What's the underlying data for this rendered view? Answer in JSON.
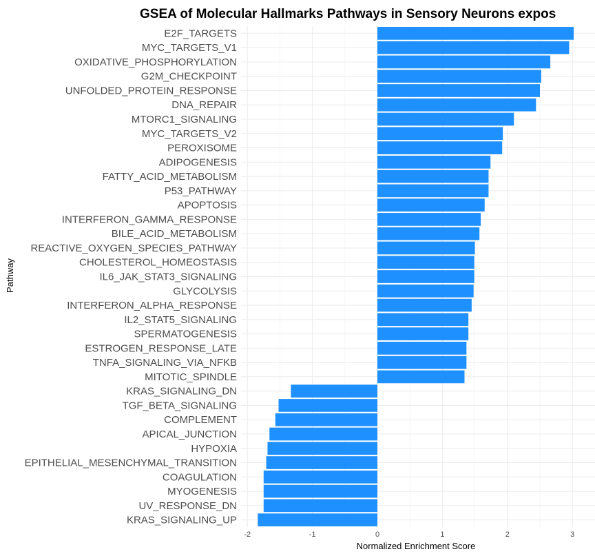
{
  "chart_data": {
    "type": "bar",
    "orientation": "horizontal",
    "title": "GSEA of Molecular Hallmarks Pathways in Sensory Neurons expos",
    "xlabel": "Normalized Enrichment Score",
    "ylabel": "Pathway",
    "xlim": [
      -2.05,
      3.05
    ],
    "xticks": [
      -2,
      -1,
      0,
      1,
      2,
      3
    ],
    "grid": true,
    "bar_color": "#1E90FF",
    "categories": [
      "E2F_TARGETS",
      "MYC_TARGETS_V1",
      "OXIDATIVE_PHOSPHORYLATION",
      "G2M_CHECKPOINT",
      "UNFOLDED_PROTEIN_RESPONSE",
      "DNA_REPAIR",
      "MTORC1_SIGNALING",
      "MYC_TARGETS_V2",
      "PEROXISOME",
      "ADIPOGENESIS",
      "FATTY_ACID_METABOLISM",
      "P53_PATHWAY",
      "APOPTOSIS",
      "INTERFERON_GAMMA_RESPONSE",
      "BILE_ACID_METABOLISM",
      "REACTIVE_OXYGEN_SPECIES_PATHWAY",
      "CHOLESTEROL_HOMEOSTASIS",
      "IL6_JAK_STAT3_SIGNALING",
      "GLYCOLYSIS",
      "INTERFERON_ALPHA_RESPONSE",
      "IL2_STAT5_SIGNALING",
      "SPERMATOGENESIS",
      "ESTROGEN_RESPONSE_LATE",
      "TNFA_SIGNALING_VIA_NFKB",
      "MITOTIC_SPINDLE",
      "KRAS_SIGNALING_DN",
      "TGF_BETA_SIGNALING",
      "COMPLEMENT",
      "APICAL_JUNCTION",
      "HYPOXIA",
      "EPITHELIAL_MESENCHYMAL_TRANSITION",
      "COAGULATION",
      "MYOGENESIS",
      "UV_RESPONSE_DN",
      "KRAS_SIGNALING_UP"
    ],
    "values": [
      3.02,
      2.95,
      2.66,
      2.52,
      2.5,
      2.44,
      2.1,
      1.93,
      1.92,
      1.74,
      1.71,
      1.71,
      1.65,
      1.59,
      1.57,
      1.5,
      1.49,
      1.49,
      1.48,
      1.45,
      1.4,
      1.4,
      1.37,
      1.37,
      1.34,
      -1.33,
      -1.52,
      -1.57,
      -1.66,
      -1.69,
      -1.71,
      -1.75,
      -1.75,
      -1.75,
      -1.84
    ]
  }
}
